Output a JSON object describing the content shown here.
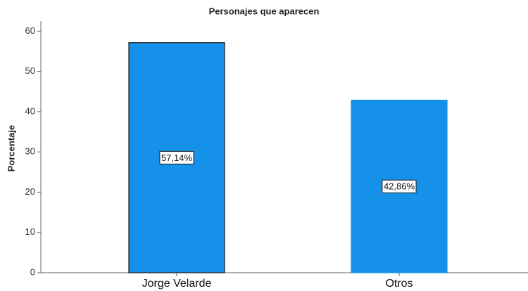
{
  "chart_data": {
    "type": "bar",
    "title": "Personajes que aparecen",
    "ylabel": "Porcentaje",
    "categories": [
      "Jorge Velarde",
      "Otros"
    ],
    "values": [
      57.14,
      42.86
    ],
    "value_labels": [
      "57,14%",
      "42,86%"
    ],
    "color": "#1591ea",
    "edgecolors": [
      "#1a1a1a",
      "#1591ea"
    ],
    "ylim": [
      0,
      62.5
    ],
    "yticks": [
      0,
      10,
      20,
      30,
      40,
      50,
      60
    ],
    "grid": false
  }
}
